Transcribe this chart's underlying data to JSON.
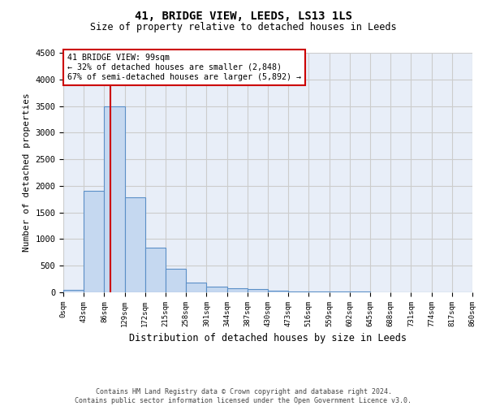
{
  "title": "41, BRIDGE VIEW, LEEDS, LS13 1LS",
  "subtitle": "Size of property relative to detached houses in Leeds",
  "xlabel": "Distribution of detached houses by size in Leeds",
  "ylabel": "Number of detached properties",
  "footer_line1": "Contains HM Land Registry data © Crown copyright and database right 2024.",
  "footer_line2": "Contains public sector information licensed under the Open Government Licence v3.0.",
  "annotation_line1": "41 BRIDGE VIEW: 99sqm",
  "annotation_line2": "← 32% of detached houses are smaller (2,848)",
  "annotation_line3": "67% of semi-detached houses are larger (5,892) →",
  "property_size": 99,
  "bin_edges": [
    0,
    43,
    86,
    129,
    172,
    215,
    258,
    301,
    344,
    387,
    430,
    473,
    516,
    559,
    602,
    645,
    688,
    731,
    774,
    817,
    860
  ],
  "bar_heights": [
    50,
    1900,
    3500,
    1780,
    840,
    440,
    180,
    110,
    80,
    60,
    30,
    20,
    15,
    10,
    8,
    5,
    5,
    4,
    3,
    2
  ],
  "bar_color": "#c5d8f0",
  "bar_edge_color": "#5b8fc7",
  "vline_color": "#cc0000",
  "ylim": [
    0,
    4500
  ],
  "yticks": [
    0,
    500,
    1000,
    1500,
    2000,
    2500,
    3000,
    3500,
    4000,
    4500
  ],
  "annotation_box_color": "#cc0000",
  "grid_color": "#cccccc",
  "background_color": "#e8eef8"
}
